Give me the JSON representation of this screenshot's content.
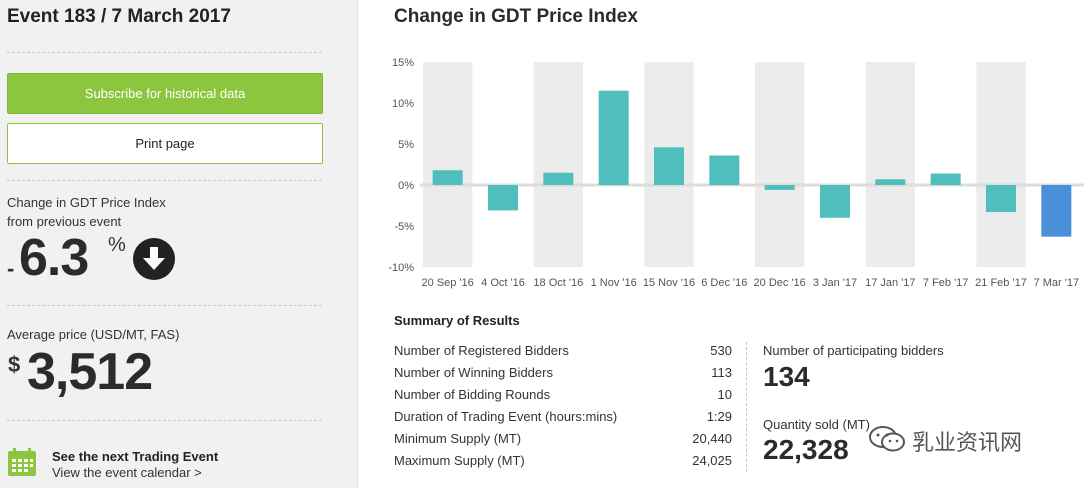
{
  "sidebar": {
    "event_title": "Event 183 / 7 March 2017",
    "subscribe_label": "Subscribe for historical data",
    "print_label": "Print page",
    "change_label_line1": "Change in GDT Price Index",
    "change_label_line2": "from previous event",
    "change_sign": "-",
    "change_value": "6.3",
    "change_unit": "%",
    "avg_price_label": "Average price (USD/MT, FAS)",
    "avg_price_currency": "$",
    "avg_price_value": "3,512",
    "next_event_title": "See the next Trading Event",
    "next_event_link": "View the event calendar >",
    "icons": [
      "arrow-down-circle-icon",
      "calendar-icon"
    ]
  },
  "chart_data": {
    "type": "bar",
    "title": "Change in GDT Price Index",
    "categories": [
      "20 Sep '16",
      "4 Oct '16",
      "18 Oct '16",
      "1 Nov '16",
      "15 Nov '16",
      "6 Dec '16",
      "20 Dec '16",
      "3 Jan '17",
      "17 Jan '17",
      "7 Feb '17",
      "21 Feb '17",
      "7 Mar '17"
    ],
    "values": [
      1.8,
      -3.1,
      1.5,
      11.5,
      4.6,
      3.6,
      -0.6,
      -4.0,
      0.7,
      1.4,
      -3.3,
      -6.3
    ],
    "ylim": [
      -10,
      15
    ],
    "yticks": [
      15,
      10,
      5,
      0,
      -5,
      -10
    ],
    "ytick_labels": [
      "15%",
      "10%",
      "5%",
      "0%",
      "-5%",
      "-10%"
    ],
    "colors": {
      "default": "#4fbfbd",
      "highlight": "#4a90d9",
      "band": "#ececec"
    },
    "highlight_index": 11
  },
  "summary": {
    "title": "Summary of Results",
    "rows": [
      {
        "label": "Number of Registered Bidders",
        "value": "530"
      },
      {
        "label": "Number of Winning Bidders",
        "value": "113"
      },
      {
        "label": "Number of Bidding Rounds",
        "value": "10"
      },
      {
        "label": "Duration of Trading Event (hours:mins)",
        "value": "1:29"
      },
      {
        "label": "Minimum Supply (MT)",
        "value": "20,440"
      },
      {
        "label": "Maximum Supply (MT)",
        "value": "24,025"
      }
    ],
    "participating_label": "Number of participating bidders",
    "participating_value": "134",
    "quantity_label": "Quantity sold (MT)",
    "quantity_value": "22,328"
  },
  "watermark": {
    "text": "乳业资讯网",
    "icon": "wechat-icon"
  }
}
